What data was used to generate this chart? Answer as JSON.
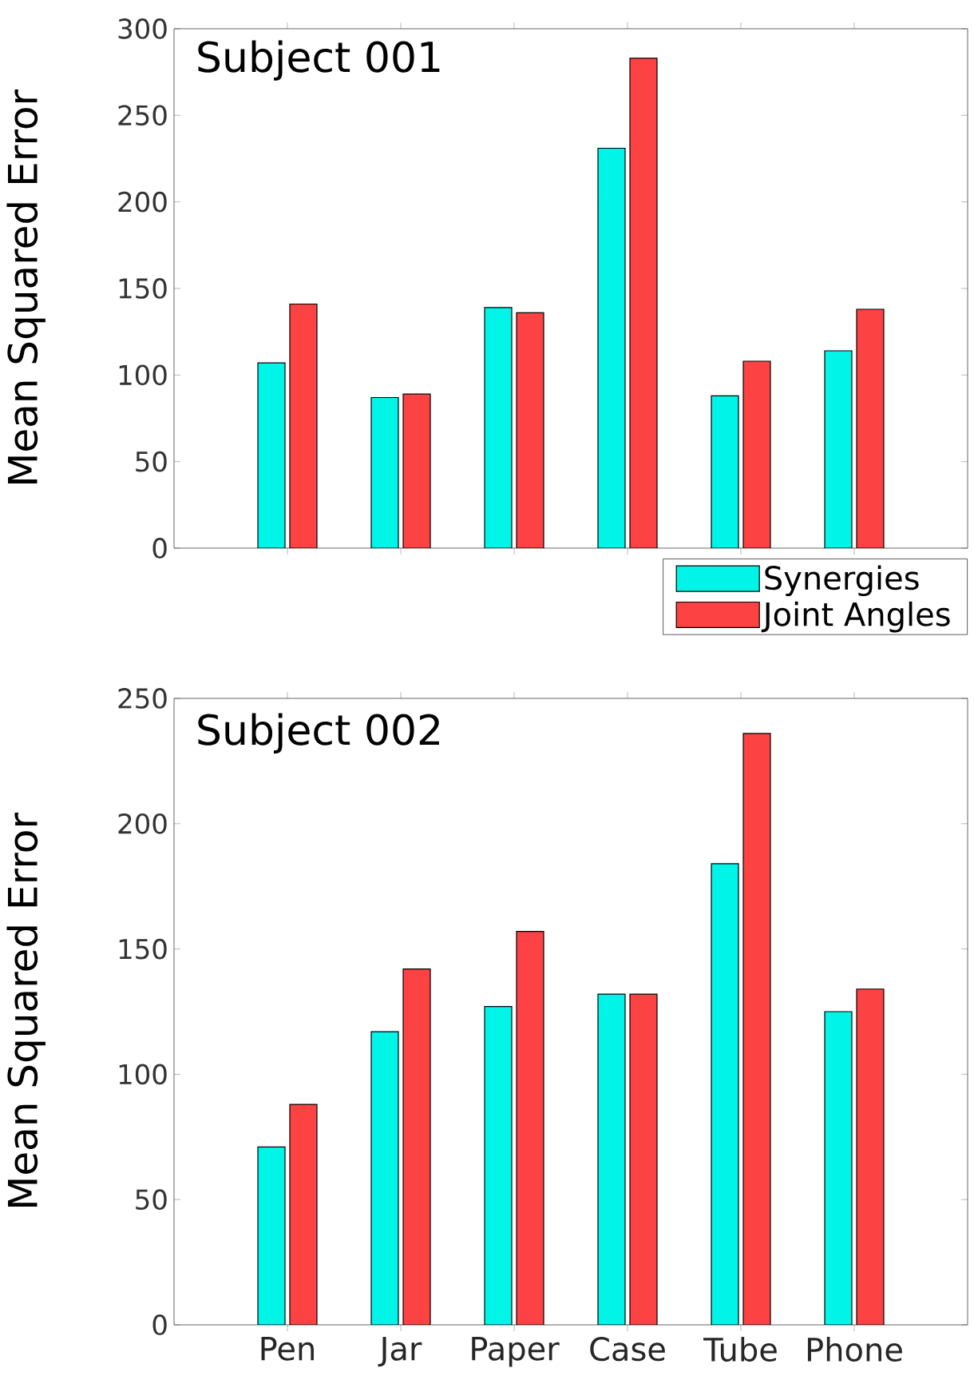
{
  "chart_data": [
    {
      "type": "bar",
      "title": "Subject 001",
      "ylabel": "Mean Squared Error",
      "categories": [
        null,
        null,
        null,
        null,
        null,
        null
      ],
      "ylim": [
        0,
        300
      ],
      "yticks": [
        0,
        50,
        100,
        150,
        200,
        250,
        300
      ],
      "tick_labels": "y",
      "legend": "bottom right",
      "series": [
        {
          "name": "Synergies",
          "color": "#00f5e8",
          "values": [
            107,
            87,
            139,
            231,
            88,
            114
          ]
        },
        {
          "name": "Joint Angles",
          "color": "#fc4242",
          "values": [
            141,
            89,
            136,
            283,
            108,
            138
          ]
        }
      ]
    },
    {
      "type": "bar",
      "title": "Subject 002",
      "ylabel": "Mean Squared Error",
      "categories": [
        "Pen",
        "Jar",
        "Paper",
        "Case",
        "Tube",
        "Phone"
      ],
      "ylim": [
        0,
        250
      ],
      "yticks": [
        0,
        50,
        100,
        150,
        200,
        250
      ],
      "series": [
        {
          "color": "#00f5e8",
          "values": [
            71,
            117,
            127,
            132,
            184,
            125
          ]
        },
        {
          "color": "#fc4242",
          "values": [
            88,
            142,
            157,
            132,
            236,
            134
          ]
        }
      ]
    }
  ]
}
